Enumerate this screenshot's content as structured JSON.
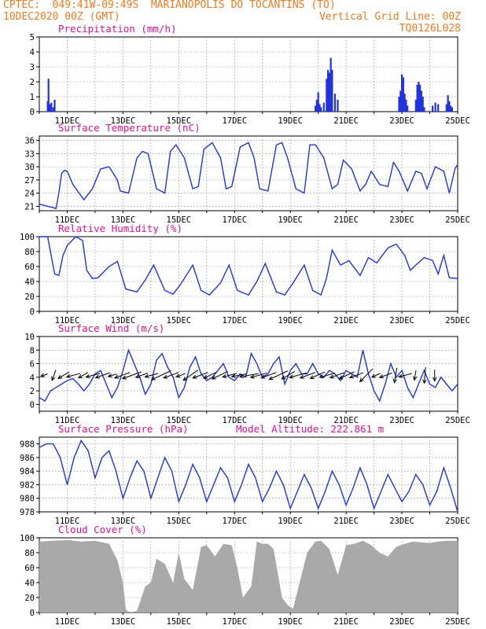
{
  "header": {
    "line1": "CPTEC:  049:41W-09:49S  MARIANOPOLIS DO TOCANTINS (TO)",
    "line2_left": "10DEC2020 00Z (GMT)",
    "line2_right": "Vertical Grid Line: 00Z",
    "line3_right": "TQ0126L028"
  },
  "colors": {
    "header": "#f07a1e",
    "title": "#e0128c",
    "series": "#2233dd",
    "cloud": "#a9a9a9",
    "arrow": "#000000"
  },
  "x_tick_labels": [
    "11DEC",
    "13DEC",
    "15DEC",
    "17DEC",
    "19DEC",
    "21DEC",
    "23DEC",
    "25DEC"
  ],
  "chart_data": [
    {
      "type": "bar",
      "title": "Precipitation (mm/h)",
      "ylim": [
        0,
        5
      ],
      "yticks": [
        "0",
        "1",
        "2",
        "3",
        "4",
        "5"
      ],
      "x_unit": "days since 10DEC 00Z",
      "x": [
        0.3,
        0.33,
        0.37,
        0.4,
        0.43,
        0.5,
        0.55,
        9.9,
        9.95,
        10.0,
        10.05,
        10.1,
        10.2,
        10.3,
        10.35,
        10.4,
        10.45,
        10.5,
        10.6,
        10.7,
        12.9,
        12.95,
        13.0,
        13.05,
        13.1,
        13.15,
        13.2,
        13.5,
        13.55,
        13.6,
        13.65,
        13.7,
        13.75,
        13.8,
        14.1,
        14.2,
        14.3,
        14.6,
        14.65,
        14.7,
        14.75,
        14.8
      ],
      "values": [
        0.7,
        2.2,
        0.5,
        0.4,
        0.6,
        0.3,
        0.8,
        0.4,
        0.8,
        1.3,
        0.5,
        0.3,
        0.6,
        2.2,
        2.8,
        2.6,
        3.6,
        2.8,
        1.2,
        0.8,
        1.0,
        1.4,
        2.5,
        2.3,
        1.2,
        0.8,
        0.4,
        0.8,
        1.8,
        2.0,
        1.8,
        1.4,
        1.0,
        0.3,
        0.4,
        0.6,
        0.5,
        0.5,
        1.1,
        0.7,
        0.4,
        0.3
      ]
    },
    {
      "type": "line",
      "title": "Surface Temperature (nC)",
      "ylim": [
        20,
        37
      ],
      "yticks": [
        "21",
        "24",
        "27",
        "30",
        "33",
        "36"
      ],
      "x": [
        0,
        0.3,
        0.5,
        0.6,
        0.7,
        0.8,
        0.9,
        1.0,
        1.2,
        1.6,
        1.9,
        2.2,
        2.5,
        2.8,
        2.9,
        3.2,
        3.5,
        3.7,
        3.9,
        4.2,
        4.5,
        4.7,
        4.9,
        5.2,
        5.5,
        5.7,
        5.9,
        6.2,
        6.5,
        6.7,
        6.9,
        7.2,
        7.5,
        7.7,
        7.9,
        8.2,
        8.5,
        8.7,
        8.9,
        9.2,
        9.5,
        9.7,
        9.9,
        10.2,
        10.5,
        10.7,
        10.9,
        11.2,
        11.5,
        11.7,
        11.9,
        12.2,
        12.5,
        12.7,
        12.9,
        13.2,
        13.5,
        13.7,
        13.9,
        14.2,
        14.5,
        14.7,
        14.9,
        15.0
      ],
      "values": [
        21.5,
        21,
        20.7,
        20.5,
        24,
        28.5,
        29.2,
        29,
        26,
        22.5,
        25,
        29.5,
        30,
        27,
        24.5,
        24,
        32,
        33.5,
        33,
        25,
        24,
        33.5,
        35,
        32,
        25,
        25.5,
        34,
        35.5,
        32,
        25,
        25.5,
        34.5,
        35.5,
        32,
        25,
        24.5,
        35,
        35.5,
        32,
        25,
        24,
        35,
        35,
        32,
        25,
        26,
        31.5,
        29.5,
        24.5,
        26,
        29,
        26,
        25.5,
        31,
        29,
        24.5,
        29,
        28.5,
        25,
        30,
        29,
        24,
        29.5,
        30.5
      ]
    },
    {
      "type": "line",
      "title": "Relative Humidity (%)",
      "ylim": [
        0,
        100
      ],
      "yticks": [
        "0",
        "20",
        "40",
        "60",
        "80",
        "100"
      ],
      "x": [
        0,
        0.3,
        0.55,
        0.7,
        0.85,
        1.0,
        1.3,
        1.55,
        1.7,
        1.9,
        2.1,
        2.5,
        2.8,
        3.1,
        3.5,
        3.8,
        4.1,
        4.5,
        4.8,
        5.1,
        5.5,
        5.8,
        6.1,
        6.5,
        6.8,
        7.1,
        7.5,
        7.8,
        8.1,
        8.5,
        8.8,
        9.1,
        9.5,
        9.8,
        10.1,
        10.3,
        10.5,
        10.8,
        11.1,
        11.5,
        11.8,
        12.1,
        12.5,
        12.8,
        13.1,
        13.3,
        13.5,
        13.8,
        14.1,
        14.3,
        14.5,
        14.7,
        15.0
      ],
      "values": [
        100,
        100,
        50,
        48,
        75,
        88,
        100,
        95,
        55,
        44,
        45,
        60,
        67,
        30,
        26,
        42,
        62,
        28,
        23,
        38,
        62,
        28,
        22,
        38,
        62,
        28,
        22,
        40,
        64,
        26,
        22,
        38,
        62,
        28,
        22,
        45,
        82,
        62,
        68,
        48,
        72,
        65,
        85,
        90,
        75,
        55,
        62,
        72,
        68,
        50,
        75,
        45,
        44
      ]
    },
    {
      "type": "line",
      "title": "Surface Wind (m/s)",
      "ylim": [
        -1,
        10
      ],
      "yticks": [
        "0",
        "2",
        "4",
        "6",
        "8",
        "10"
      ],
      "x": [
        0,
        0.2,
        0.4,
        0.6,
        0.8,
        1.0,
        1.2,
        1.4,
        1.6,
        1.8,
        2.0,
        2.2,
        2.4,
        2.6,
        2.8,
        3.0,
        3.2,
        3.4,
        3.6,
        3.8,
        4.0,
        4.2,
        4.4,
        4.6,
        4.8,
        5.0,
        5.2,
        5.4,
        5.6,
        5.8,
        6.0,
        6.2,
        6.4,
        6.6,
        6.8,
        7.0,
        7.2,
        7.4,
        7.6,
        7.8,
        8.0,
        8.2,
        8.4,
        8.6,
        8.8,
        9.0,
        9.2,
        9.4,
        9.6,
        9.8,
        10.0,
        10.2,
        10.4,
        10.6,
        10.8,
        11.0,
        11.2,
        11.4,
        11.6,
        11.8,
        12.0,
        12.2,
        12.4,
        12.6,
        12.8,
        13.0,
        13.2,
        13.4,
        13.6,
        13.8,
        14.0,
        14.2,
        14.4,
        14.6,
        14.8,
        15.0
      ],
      "values": [
        1,
        0.5,
        2,
        2.5,
        3,
        3.5,
        3.8,
        3,
        2,
        3,
        4.5,
        5,
        3,
        1,
        2.5,
        5,
        8,
        6,
        4,
        1.5,
        3,
        6.5,
        7.5,
        5.5,
        4,
        1,
        2.5,
        5.5,
        7,
        4.5,
        3.5,
        4,
        5,
        6,
        4,
        3.5,
        4.5,
        4,
        7.5,
        6,
        4,
        4.5,
        6,
        7,
        3,
        5,
        6,
        4.5,
        4.5,
        6,
        4.5,
        4,
        5,
        4.5,
        3.5,
        5,
        4.5,
        4,
        8,
        4.5,
        2,
        0.5,
        3,
        6,
        4,
        5,
        2.5,
        1,
        3,
        5,
        3,
        2.5,
        4,
        3,
        2,
        3
      ]
    },
    {
      "type": "line",
      "title": "Surface Pressure (hPa)",
      "annotation": "Model Altitude: 222.861 m",
      "ylim": [
        978,
        989
      ],
      "yticks": [
        "978",
        "980",
        "982",
        "984",
        "986",
        "988"
      ],
      "x": [
        0,
        0.25,
        0.5,
        0.75,
        1.0,
        1.25,
        1.5,
        1.75,
        2.0,
        2.25,
        2.5,
        2.75,
        3.0,
        3.25,
        3.5,
        3.75,
        4.0,
        4.25,
        4.5,
        4.75,
        5.0,
        5.25,
        5.5,
        5.75,
        6.0,
        6.25,
        6.5,
        6.75,
        7.0,
        7.25,
        7.5,
        7.75,
        8.0,
        8.25,
        8.5,
        8.75,
        9.0,
        9.25,
        9.5,
        9.75,
        10.0,
        10.25,
        10.5,
        10.75,
        11.0,
        11.25,
        11.5,
        11.75,
        12.0,
        12.25,
        12.5,
        12.75,
        13.0,
        13.25,
        13.5,
        13.75,
        14.0,
        14.25,
        14.5,
        14.75,
        15.0
      ],
      "values": [
        987.5,
        988,
        988,
        986,
        982,
        986,
        988.5,
        987,
        983,
        986,
        987,
        984,
        980,
        983,
        985.5,
        984,
        980,
        983,
        986,
        984,
        979.5,
        982,
        985,
        983,
        979.5,
        982,
        984.5,
        983,
        979.5,
        982,
        985,
        983,
        979.5,
        981.5,
        984,
        982,
        978.5,
        981,
        983.5,
        981.5,
        978.5,
        981,
        984,
        982,
        979,
        981.5,
        984.5,
        982,
        978.5,
        981,
        983.5,
        981.5,
        979.5,
        981,
        983.5,
        982,
        979,
        981,
        984.5,
        981.5,
        978
      ]
    },
    {
      "type": "area",
      "title": "Cloud Cover (%)",
      "ylim": [
        0,
        100
      ],
      "yticks": [
        "0",
        "20",
        "40",
        "60",
        "80",
        "100"
      ],
      "x": [
        0,
        0.5,
        1.0,
        1.5,
        2.0,
        2.5,
        2.8,
        3.0,
        3.1,
        3.2,
        3.5,
        3.8,
        4.0,
        4.2,
        4.5,
        4.8,
        5.0,
        5.2,
        5.5,
        5.8,
        6.0,
        6.3,
        6.6,
        6.9,
        7.1,
        7.3,
        7.6,
        7.8,
        8.0,
        8.2,
        8.4,
        8.7,
        8.9,
        9.1,
        9.3,
        9.6,
        9.9,
        10.1,
        10.4,
        10.7,
        11.0,
        11.3,
        11.6,
        11.9,
        12.2,
        12.5,
        12.8,
        13.1,
        13.4,
        13.7,
        14.0,
        14.3,
        14.6,
        15.0
      ],
      "values": [
        95,
        96,
        97,
        95,
        96,
        92,
        70,
        40,
        5,
        0,
        2,
        35,
        40,
        72,
        65,
        40,
        80,
        45,
        30,
        88,
        90,
        75,
        92,
        90,
        60,
        20,
        35,
        95,
        92,
        92,
        85,
        20,
        10,
        5,
        35,
        80,
        95,
        96,
        85,
        50,
        90,
        92,
        96,
        90,
        80,
        75,
        88,
        92,
        95,
        94,
        93,
        95,
        96,
        96
      ]
    }
  ]
}
